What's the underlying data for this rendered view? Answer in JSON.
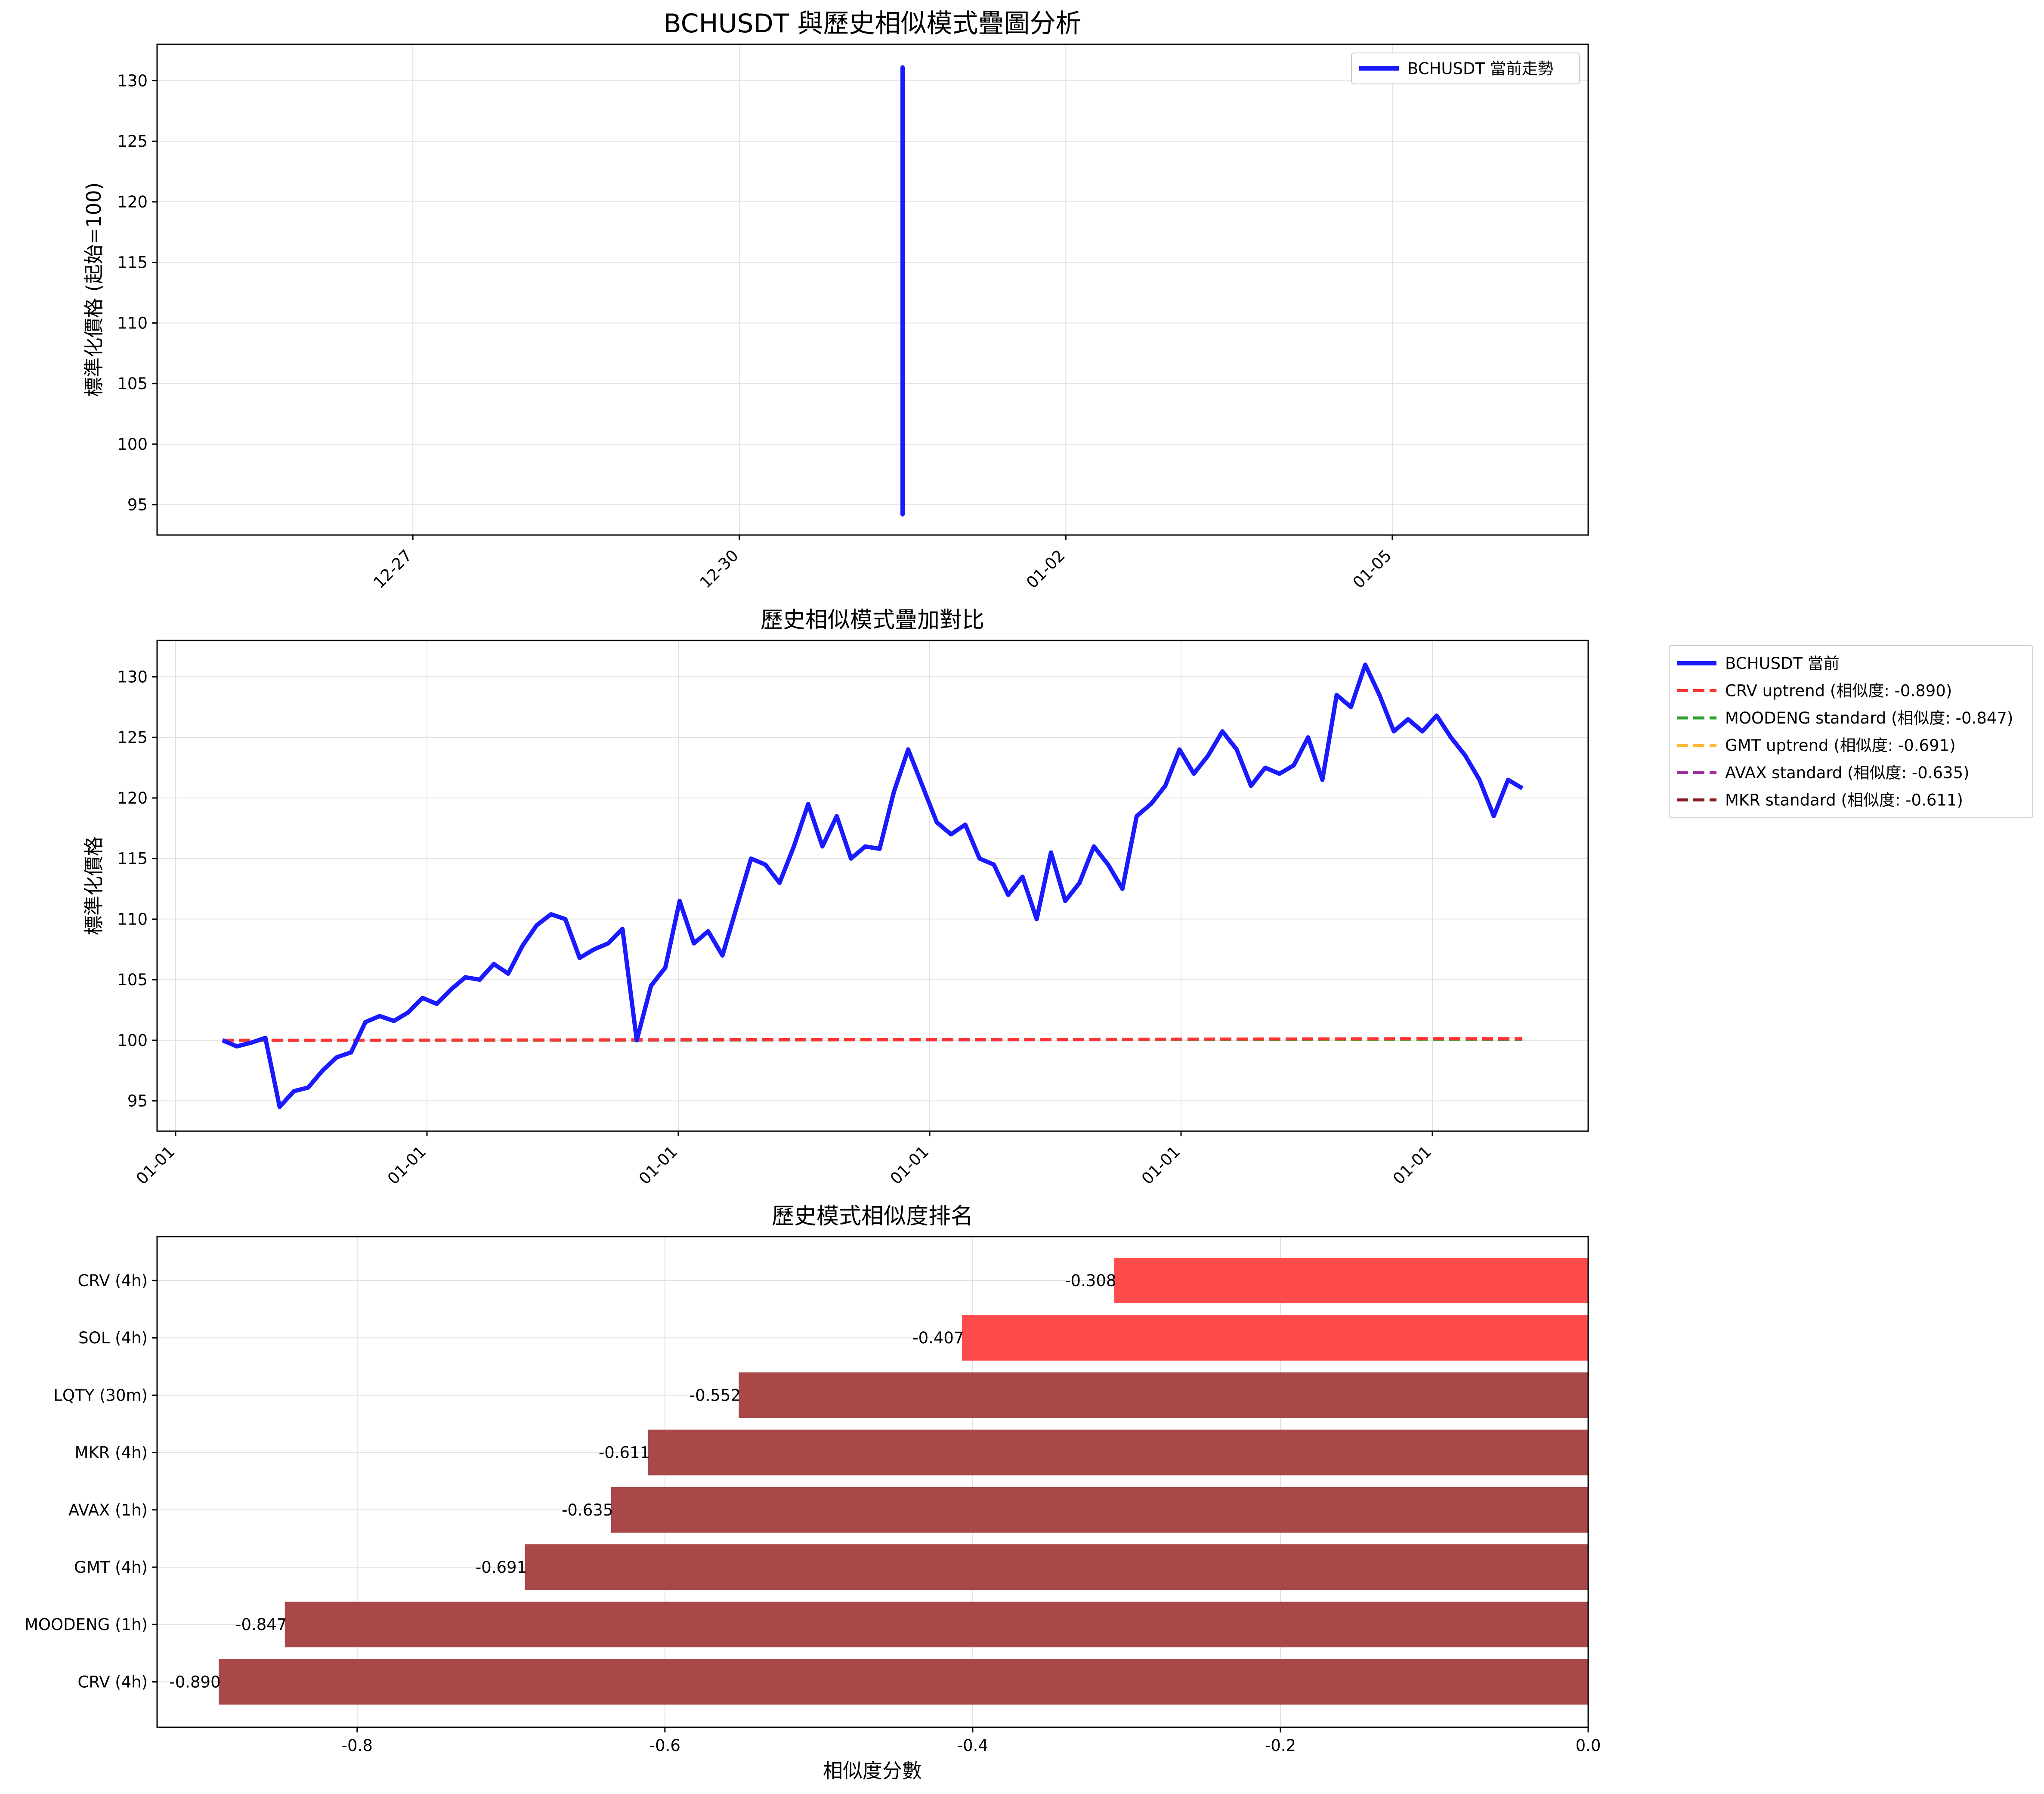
{
  "chart_data": [
    {
      "type": "line",
      "title": "BCHUSDT 與歷史相似模式疊圖分析",
      "ylabel": "標準化價格 (起始=100)",
      "xlabel": "",
      "x_ticks": [
        "12-27",
        "12-30",
        "01-02",
        "01-05"
      ],
      "x_range": [
        "12-25",
        "01-07"
      ],
      "y_ticks": [
        95,
        100,
        105,
        110,
        115,
        120,
        125,
        130
      ],
      "ylim": [
        92.5,
        133
      ],
      "grid": true,
      "legend_position": "top-right",
      "series": [
        {
          "name": "BCHUSDT 當前走勢",
          "color": "#1a1aff",
          "x_at": "12-31 ~20:00",
          "y_min": 94.2,
          "y_max": 131.1,
          "note_values": "all points fall at essentially one x position, forming a vertical segment"
        }
      ]
    },
    {
      "type": "line",
      "title": "歷史相似模式疊加對比",
      "ylabel": "標準化價格",
      "xlabel": "",
      "x_ticks": [
        "01-01",
        "01-01",
        "01-01",
        "01-01",
        "01-01",
        "01-01"
      ],
      "y_ticks": [
        95,
        100,
        105,
        110,
        115,
        120,
        125,
        130
      ],
      "ylim": [
        92.5,
        133
      ],
      "grid": true,
      "legend_position": "outside-right",
      "series": [
        {
          "name": "BCHUSDT 當前",
          "color": "#1a1aff",
          "style": "solid",
          "values": [
            100,
            99.5,
            99.8,
            100.2,
            94.5,
            95.8,
            96.1,
            97.5,
            98.6,
            99.0,
            101.5,
            102.0,
            101.6,
            102.3,
            103.5,
            103.0,
            104.2,
            105.2,
            105.0,
            106.3,
            105.5,
            107.8,
            109.5,
            110.4,
            110.0,
            106.8,
            107.5,
            108.0,
            109.2,
            100.0,
            104.5,
            106.0,
            111.5,
            108.0,
            109.0,
            107.0,
            111.0,
            115.0,
            114.5,
            113.0,
            116.0,
            119.5,
            116.0,
            118.5,
            115.0,
            116.0,
            115.8,
            120.5,
            124.0,
            121.0,
            118.0,
            117.0,
            117.8,
            115.0,
            114.5,
            112.0,
            113.5,
            110.0,
            115.5,
            111.5,
            113.0,
            116.0,
            114.5,
            112.5,
            118.5,
            119.5,
            121.0,
            124.0,
            122.0,
            123.5,
            125.5,
            124.0,
            121.0,
            122.5,
            122.0,
            122.7,
            125.0,
            121.5,
            128.5,
            127.5,
            131.0,
            128.5,
            125.5,
            126.5,
            125.5,
            126.8,
            125.0,
            123.5,
            121.5,
            118.5,
            121.5,
            120.8
          ]
        },
        {
          "name": "CRV uptrend (相似度: -0.890)",
          "color": "#ff3333",
          "style": "dashed",
          "values": [
            100,
            100.03,
            100.06,
            100.1,
            100.13
          ]
        },
        {
          "name": "MOODENG standard (相似度: -0.847)",
          "color": "#2ca02c",
          "style": "dashed",
          "values": [
            100,
            100.02,
            100.05,
            100.08,
            100.1
          ]
        },
        {
          "name": "GMT uptrend (相似度: -0.691)",
          "color": "#ffb833",
          "style": "dashed",
          "values": [
            100,
            100.02,
            100.04,
            100.07,
            100.1
          ]
        },
        {
          "name": "AVAX standard (相似度: -0.635)",
          "color": "#a02ca0",
          "style": "dashed",
          "values": [
            100,
            100.01,
            100.03,
            100.05,
            100.08
          ]
        },
        {
          "name": "MKR standard (相似度: -0.611)",
          "color": "#8b1a1a",
          "style": "dashed",
          "values": [
            100,
            100.02,
            100.05,
            100.08,
            100.1
          ]
        }
      ]
    },
    {
      "type": "bar",
      "orientation": "horizontal",
      "title": "歷史模式相似度排名",
      "xlabel": "相似度分數",
      "ylabel": "",
      "x_ticks": [
        -0.8,
        -0.6,
        -0.4,
        -0.2,
        0.0
      ],
      "xlim": [
        -0.93,
        0
      ],
      "grid": true,
      "categories": [
        "CRV (4h)",
        "SOL (4h)",
        "LQTY (30m)",
        "MKR (4h)",
        "AVAX (1h)",
        "GMT (4h)",
        "MOODENG (1h)",
        "CRV (4h)"
      ],
      "values": [
        -0.308,
        -0.407,
        -0.552,
        -0.611,
        -0.635,
        -0.691,
        -0.847,
        -0.89
      ],
      "value_labels": [
        "-0.308",
        "-0.407",
        "-0.552",
        "-0.611",
        "-0.635",
        "-0.691",
        "-0.847",
        "-0.890"
      ],
      "colors": [
        "#ff4b4b",
        "#ff4b4b",
        "#a84848",
        "#a84848",
        "#a84848",
        "#a84848",
        "#a84848",
        "#a84848"
      ]
    }
  ]
}
